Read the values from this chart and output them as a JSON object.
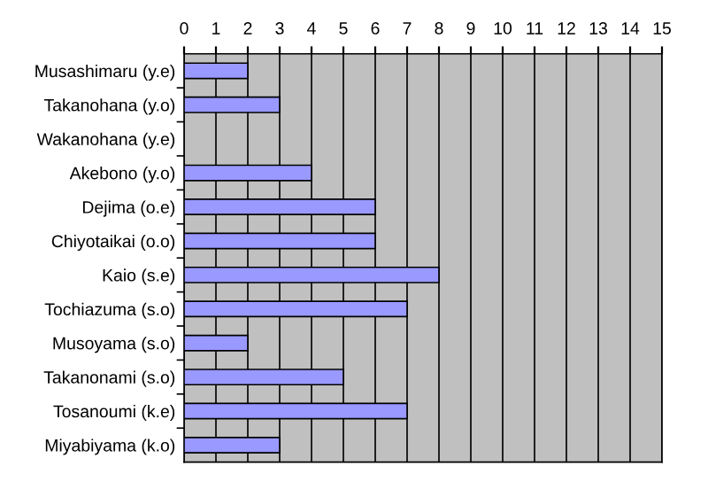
{
  "chart_data": {
    "type": "bar",
    "orientation": "horizontal",
    "categories": [
      "Musashimaru (y.e)",
      "Takanohana (y.o)",
      "Wakanohana (y.e)",
      "Akebono (y.o)",
      "Dejima (o.e)",
      "Chiyotaikai (o.o)",
      "Kaio (s.e)",
      "Tochiazuma (s.o)",
      "Musoyama (s.o)",
      "Takanonami (s.o)",
      "Tosanoumi (k.e)",
      "Miyabiyama (k.o)"
    ],
    "values": [
      2,
      3,
      0,
      4,
      6,
      6,
      8,
      7,
      2,
      5,
      7,
      3
    ],
    "color": "#9999ff",
    "xlim": [
      0,
      15
    ],
    "xticks": [
      0,
      1,
      2,
      3,
      4,
      5,
      6,
      7,
      8,
      9,
      10,
      11,
      12,
      13,
      14,
      15
    ],
    "grid": "x",
    "legend": false
  }
}
